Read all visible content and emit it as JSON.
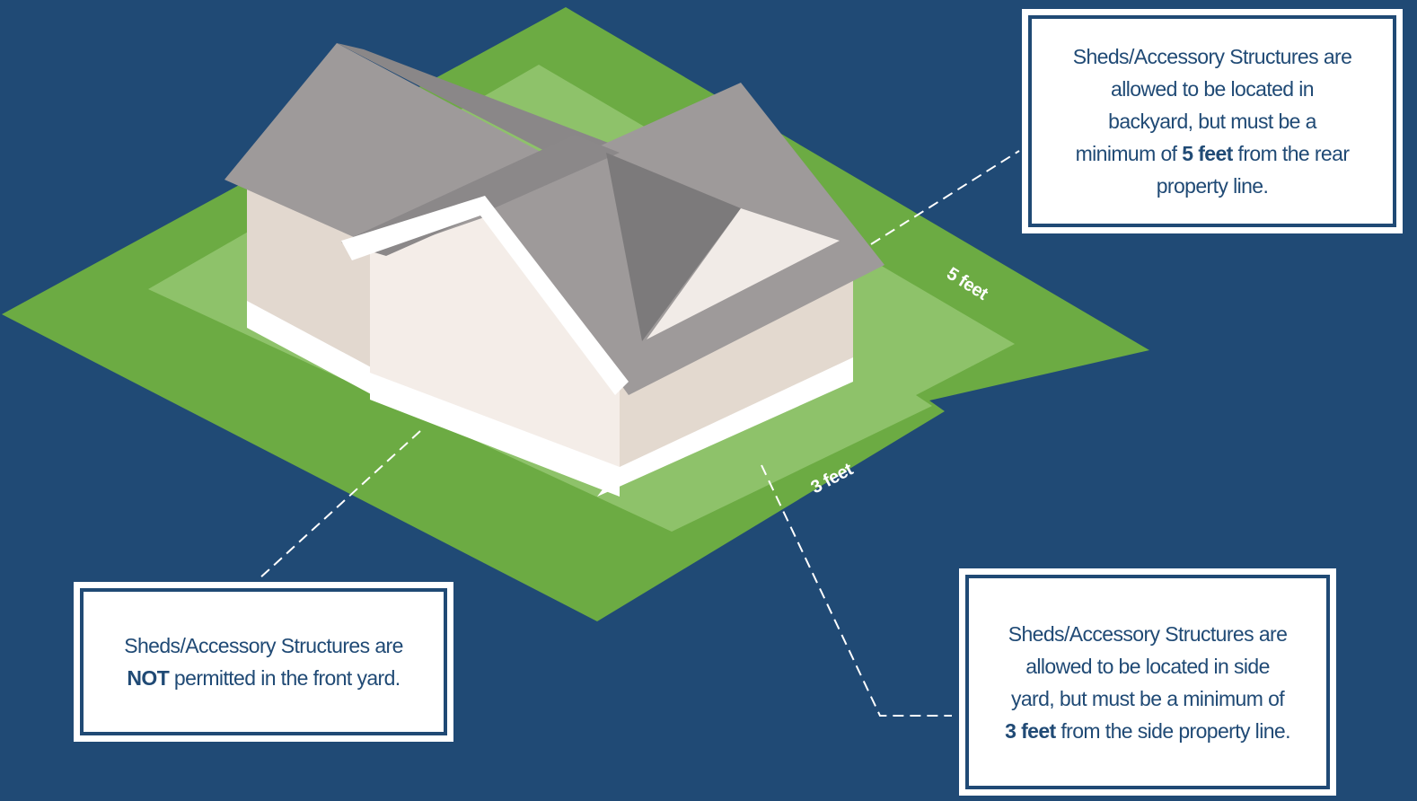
{
  "labels": {
    "rear_distance": "5 feet",
    "side_distance": "3 feet"
  },
  "callouts": {
    "rear": {
      "parts": [
        {
          "text": "Sheds/Accessory Structures are allowed to be located in backyard, but must be a minimum of ",
          "bold": false
        },
        {
          "text": "5 feet",
          "bold": true
        },
        {
          "text": " from the rear property line.",
          "bold": false
        }
      ]
    },
    "front": {
      "parts": [
        {
          "text": "Sheds/Accessory Structures are ",
          "bold": false
        },
        {
          "text": "NOT",
          "bold": true
        },
        {
          "text": " permitted in the front yard.",
          "bold": false
        }
      ]
    },
    "side": {
      "parts": [
        {
          "text": "Sheds/Accessory Structures are allowed to be located in side yard, but must be a minimum of ",
          "bold": false
        },
        {
          "text": "3 feet",
          "bold": true
        },
        {
          "text": " from the side property line.",
          "bold": false
        }
      ]
    }
  }
}
